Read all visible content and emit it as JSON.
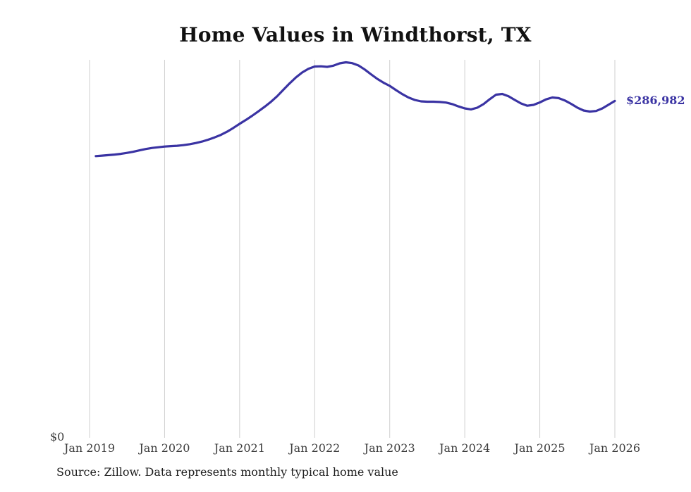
{
  "title": "Home Values in Windthorst, TX",
  "source_note": "Source: Zillow. Data represents monthly typical home value",
  "y_axis": {
    "zero_label": "$0"
  },
  "colors": {
    "line": "#3a33a3",
    "grid": "#cfcfcf",
    "title_text": "#111111",
    "tick_text": "#3d3d3d",
    "end_label_text": "#3a33a3"
  },
  "chart_data": {
    "type": "line",
    "title": "Home Values in Windthorst, TX",
    "xlabel": "",
    "ylabel": "",
    "ylim": [
      0,
      322000
    ],
    "grid": "vertical-only",
    "legend": "none",
    "end_label": "$286,982",
    "x_tick_labels": [
      "Jan 2019",
      "Jan 2020",
      "Jan 2021",
      "Jan 2022",
      "Jan 2023",
      "Jan 2024",
      "Jan 2025",
      "Jan 2026"
    ],
    "x_range": {
      "start": "2019-02",
      "end": "2026-01",
      "step": "month"
    },
    "start_offset_months": 1,
    "series": [
      {
        "name": "Typical home value",
        "values": [
          240000,
          240400,
          240800,
          241300,
          241900,
          242700,
          243700,
          244900,
          246000,
          246900,
          247500,
          248100,
          248500,
          248800,
          249300,
          250100,
          251100,
          252400,
          254000,
          255900,
          258100,
          260800,
          264000,
          267500,
          270800,
          274300,
          278100,
          282000,
          286200,
          291000,
          296500,
          302000,
          307000,
          311200,
          314300,
          316300,
          316500,
          316000,
          317000,
          319000,
          319900,
          319200,
          317200,
          313800,
          309700,
          305800,
          302600,
          299800,
          296200,
          292800,
          289900,
          287800,
          286600,
          286300,
          286300,
          286100,
          285600,
          284300,
          282300,
          280600,
          279800,
          281200,
          284300,
          288500,
          292300,
          292900,
          291000,
          287800,
          284800,
          282900,
          283600,
          285700,
          288300,
          289900,
          289400,
          287400,
          284500,
          281300,
          278800,
          277900,
          278400,
          280600,
          283800,
          286982
        ]
      }
    ]
  }
}
